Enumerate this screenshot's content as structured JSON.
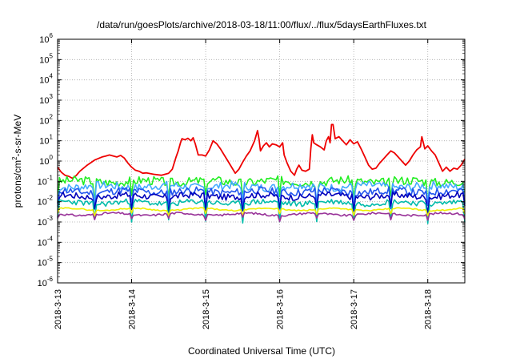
{
  "chart_data": {
    "type": "line",
    "title": "/data/run/goesPlots/archive/2018-03-18/11:00/flux/../flux/5daysEarthFluxes.txt",
    "xlabel": "Coordinated Universal Time (UTC)",
    "ylabel_main": "protons/cm",
    "ylabel_sup": "2",
    "ylabel_rest": "-s-sr-MeV",
    "yscale": "log",
    "ylim_exp": [
      -6,
      6
    ],
    "ytick_base": "10",
    "ytick_exponents": [
      "-6",
      "-5",
      "-4",
      "-3",
      "-2",
      "-1",
      "0",
      "1",
      "2",
      "3",
      "4",
      "5",
      "6"
    ],
    "xlim_days": [
      13.0,
      18.5
    ],
    "xticks": [
      {
        "day": 13,
        "label": "2018-3-13"
      },
      {
        "day": 14,
        "label": "2018-3-14"
      },
      {
        "day": 15,
        "label": "2018-3-15"
      },
      {
        "day": 16,
        "label": "2018-3-16"
      },
      {
        "day": 17,
        "label": "2018-3-17"
      },
      {
        "day": 18,
        "label": "2018-3-18"
      }
    ],
    "grid": true,
    "series": [
      {
        "color": "#ee0000",
        "points": [
          [
            13.0,
            -0.3
          ],
          [
            13.05,
            -0.55
          ],
          [
            13.1,
            -0.7
          ],
          [
            13.15,
            -0.75
          ],
          [
            13.2,
            -0.85
          ],
          [
            13.25,
            -0.72
          ],
          [
            13.3,
            -0.5
          ],
          [
            13.4,
            -0.2
          ],
          [
            13.5,
            0.05
          ],
          [
            13.6,
            0.2
          ],
          [
            13.65,
            0.25
          ],
          [
            13.7,
            0.3
          ],
          [
            13.8,
            0.2
          ],
          [
            13.85,
            0.28
          ],
          [
            13.9,
            0.15
          ],
          [
            13.95,
            -0.1
          ],
          [
            14.0,
            -0.3
          ],
          [
            14.05,
            -0.45
          ],
          [
            14.1,
            -0.5
          ],
          [
            14.15,
            -0.6
          ],
          [
            14.2,
            -0.58
          ],
          [
            14.3,
            -0.65
          ],
          [
            14.4,
            -0.7
          ],
          [
            14.5,
            -0.6
          ],
          [
            14.55,
            -0.4
          ],
          [
            14.6,
            0.2
          ],
          [
            14.63,
            0.5
          ],
          [
            14.66,
            0.9
          ],
          [
            14.68,
            1.1
          ],
          [
            14.72,
            1.05
          ],
          [
            14.76,
            1.12
          ],
          [
            14.8,
            1.0
          ],
          [
            14.83,
            1.15
          ],
          [
            14.86,
            0.85
          ],
          [
            14.9,
            0.3
          ],
          [
            14.95,
            0.3
          ],
          [
            15.0,
            0.25
          ],
          [
            15.05,
            0.55
          ],
          [
            15.1,
            1.0
          ],
          [
            15.15,
            0.85
          ],
          [
            15.2,
            0.6
          ],
          [
            15.25,
            0.3
          ],
          [
            15.3,
            0.0
          ],
          [
            15.35,
            -0.3
          ],
          [
            15.4,
            -0.6
          ],
          [
            15.45,
            -0.4
          ],
          [
            15.5,
            -0.05
          ],
          [
            15.55,
            0.25
          ],
          [
            15.6,
            0.5
          ],
          [
            15.66,
            1.0
          ],
          [
            15.7,
            1.5
          ],
          [
            15.72,
            1.1
          ],
          [
            15.74,
            0.5
          ],
          [
            15.78,
            0.75
          ],
          [
            15.82,
            0.9
          ],
          [
            15.86,
            0.7
          ],
          [
            15.9,
            0.85
          ],
          [
            15.95,
            0.8
          ],
          [
            16.0,
            0.7
          ],
          [
            16.04,
            0.9
          ],
          [
            16.06,
            0.3
          ],
          [
            16.1,
            -0.1
          ],
          [
            16.15,
            -0.5
          ],
          [
            16.2,
            -0.7
          ],
          [
            16.23,
            -0.4
          ],
          [
            16.26,
            -0.2
          ],
          [
            16.3,
            -0.45
          ],
          [
            16.35,
            -0.5
          ],
          [
            16.4,
            -0.4
          ],
          [
            16.42,
            0.6
          ],
          [
            16.44,
            1.3
          ],
          [
            16.46,
            0.9
          ],
          [
            16.5,
            0.8
          ],
          [
            16.55,
            0.7
          ],
          [
            16.6,
            0.55
          ],
          [
            16.63,
            1.0
          ],
          [
            16.66,
            1.2
          ],
          [
            16.68,
            0.9
          ],
          [
            16.7,
            1.8
          ],
          [
            16.72,
            1.8
          ],
          [
            16.75,
            1.1
          ],
          [
            16.8,
            1.2
          ],
          [
            16.85,
            1.0
          ],
          [
            16.9,
            0.8
          ],
          [
            16.95,
            1.05
          ],
          [
            17.0,
            0.85
          ],
          [
            17.05,
            0.95
          ],
          [
            17.1,
            0.6
          ],
          [
            17.15,
            0.2
          ],
          [
            17.2,
            -0.2
          ],
          [
            17.25,
            -0.4
          ],
          [
            17.3,
            -0.35
          ],
          [
            17.35,
            -0.1
          ],
          [
            17.4,
            0.1
          ],
          [
            17.45,
            0.3
          ],
          [
            17.5,
            0.5
          ],
          [
            17.55,
            0.4
          ],
          [
            17.6,
            0.2
          ],
          [
            17.65,
            0.0
          ],
          [
            17.7,
            -0.2
          ],
          [
            17.75,
            0.0
          ],
          [
            17.8,
            0.3
          ],
          [
            17.85,
            0.55
          ],
          [
            17.9,
            0.7
          ],
          [
            17.92,
            1.2
          ],
          [
            17.94,
            0.9
          ],
          [
            17.96,
            0.6
          ],
          [
            18.0,
            0.75
          ],
          [
            18.05,
            0.5
          ],
          [
            18.1,
            0.3
          ],
          [
            18.15,
            -0.1
          ],
          [
            18.2,
            -0.5
          ],
          [
            18.25,
            -0.3
          ],
          [
            18.3,
            -0.5
          ],
          [
            18.35,
            -0.35
          ],
          [
            18.4,
            -0.4
          ],
          [
            18.45,
            -0.2
          ],
          [
            18.5,
            0.1
          ]
        ]
      },
      {
        "color": "#22ee22",
        "base": -1.0,
        "amp": 0.22,
        "seed": 3,
        "spike": -0.9
      },
      {
        "color": "#44aaff",
        "base": -1.25,
        "amp": 0.2,
        "seed": 7,
        "spike": -0.8
      },
      {
        "color": "#2255ee",
        "base": -1.5,
        "amp": 0.18,
        "seed": 11,
        "spike": -0.8
      },
      {
        "color": "#0000bb",
        "base": -1.72,
        "amp": 0.16,
        "seed": 17,
        "spike": -0.7
      },
      {
        "color": "#00bbaa",
        "base": -2.05,
        "amp": 0.14,
        "seed": 23,
        "spike": -0.9
      },
      {
        "color": "#eeee00",
        "base": -2.38,
        "amp": 0.03,
        "seed": 29,
        "spike": -0.25
      },
      {
        "color": "#993399",
        "base": -2.62,
        "amp": 0.05,
        "seed": 31,
        "spike": -0.25
      }
    ]
  }
}
